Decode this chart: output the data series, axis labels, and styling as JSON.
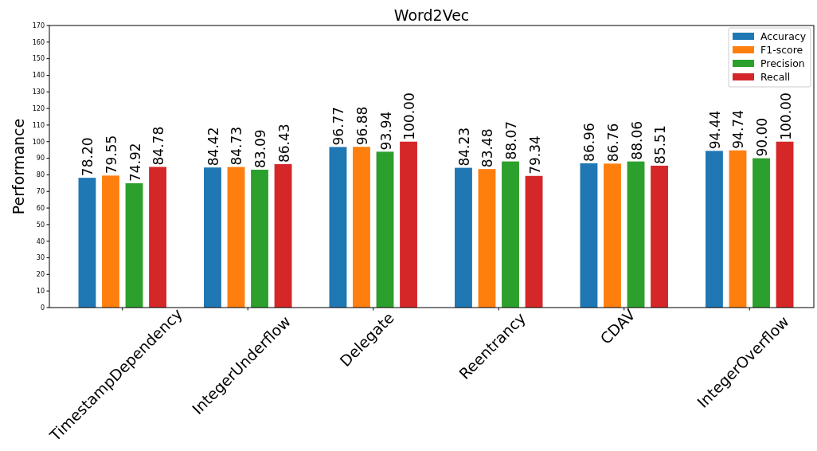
{
  "chart_data": {
    "type": "bar",
    "title": "Word2Vec",
    "ylabel": "Performance",
    "categories": [
      "TimestampDependency",
      "IntegerUnderflow",
      "Delegate",
      "Reentrancy",
      "CDAV",
      "IntegerOverflow"
    ],
    "series": [
      {
        "name": "Accuracy",
        "color": "#1f77b4",
        "values": [
          78.2,
          84.42,
          96.77,
          84.23,
          86.96,
          94.44
        ],
        "value_labels": [
          "78.20",
          "84.42",
          "96.77",
          "84.23",
          "86.96",
          "94.44"
        ]
      },
      {
        "name": "F1-score",
        "color": "#ff7f0e",
        "values": [
          79.55,
          84.73,
          96.88,
          83.48,
          86.76,
          94.74
        ],
        "value_labels": [
          "79.55",
          "84.73",
          "96.88",
          "83.48",
          "86.76",
          "94.74"
        ]
      },
      {
        "name": "Precision",
        "color": "#2ca02c",
        "values": [
          74.92,
          83.09,
          93.94,
          88.07,
          88.06,
          90.0
        ],
        "value_labels": [
          "74.92",
          "83.09",
          "93.94",
          "88.07",
          "88.06",
          "90.00"
        ]
      },
      {
        "name": "Recall",
        "color": "#d62728",
        "values": [
          84.78,
          86.43,
          100.0,
          79.34,
          85.51,
          100.0
        ],
        "value_labels": [
          "84.78",
          "86.43",
          "100.00",
          "79.34",
          "85.51",
          "100.00"
        ]
      }
    ],
    "ylim": [
      0,
      170
    ],
    "yticks": [
      0,
      10,
      20,
      30,
      40,
      50,
      60,
      70,
      80,
      90,
      100,
      110,
      120,
      130,
      140,
      150,
      160,
      170
    ],
    "legend": "top right",
    "grid": false
  }
}
